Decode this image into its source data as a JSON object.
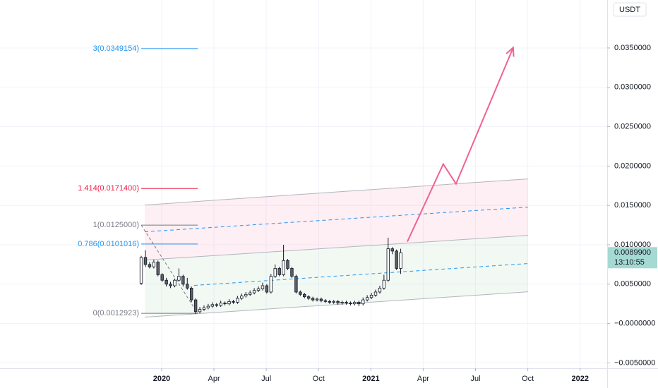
{
  "chart_data": {
    "type": "candlestick",
    "currency": "USDT",
    "x": [
      -1.17,
      -0.93,
      -0.69,
      -0.45,
      -0.21,
      0.03,
      0.27,
      0.51,
      0.75,
      0.99,
      1.23,
      1.47,
      1.71,
      1.95,
      2.19,
      2.43,
      2.67,
      2.91,
      3.15,
      3.39,
      3.63,
      3.87,
      4.11,
      4.35,
      4.59,
      4.83,
      5.07,
      5.31,
      5.55,
      5.79,
      6.03,
      6.27,
      6.51,
      6.75,
      6.99,
      7.23,
      7.47,
      7.71,
      7.95,
      8.19,
      8.43,
      8.67,
      8.91,
      9.15,
      9.39,
      9.63,
      9.87,
      10.11,
      10.35,
      10.59,
      10.83,
      11.07,
      11.31,
      11.55,
      11.79,
      12.03,
      12.27,
      12.51,
      12.75,
      12.99,
      13.23,
      13.47,
      13.71
    ],
    "open": [
      0.0051,
      0.0084,
      0.0075,
      0.0072,
      0.0078,
      0.0062,
      0.0055,
      0.005,
      0.0048,
      0.0055,
      0.006,
      0.005,
      0.0045,
      0.003,
      0.0015,
      0.0018,
      0.002,
      0.0022,
      0.0024,
      0.0023,
      0.0026,
      0.0025,
      0.0028,
      0.0027,
      0.0032,
      0.0035,
      0.0037,
      0.0039,
      0.0042,
      0.0044,
      0.0048,
      0.004,
      0.006,
      0.007,
      0.0062,
      0.008,
      0.007,
      0.006,
      0.004,
      0.0037,
      0.0034,
      0.0032,
      0.003,
      0.0031,
      0.0029,
      0.0028,
      0.0027,
      0.0028,
      0.0026,
      0.0027,
      0.0026,
      0.0025,
      0.0027,
      0.0025,
      0.003,
      0.0033,
      0.0036,
      0.004,
      0.0045,
      0.0055,
      0.0095,
      0.0092,
      0.007
    ],
    "high": [
      0.0086,
      0.0093,
      0.0078,
      0.0081,
      0.008,
      0.0064,
      0.0058,
      0.0053,
      0.0057,
      0.007,
      0.0062,
      0.0058,
      0.0047,
      0.0032,
      0.0021,
      0.0023,
      0.0025,
      0.0027,
      0.0026,
      0.0029,
      0.0028,
      0.0031,
      0.003,
      0.0035,
      0.0038,
      0.004,
      0.0042,
      0.0045,
      0.0047,
      0.0052,
      0.005,
      0.0063,
      0.0075,
      0.0072,
      0.01,
      0.0082,
      0.0072,
      0.0062,
      0.0042,
      0.0039,
      0.0036,
      0.0034,
      0.0033,
      0.0033,
      0.0031,
      0.003,
      0.003,
      0.003,
      0.0029,
      0.0029,
      0.0028,
      0.0029,
      0.0029,
      0.0033,
      0.0036,
      0.0039,
      0.0043,
      0.0048,
      0.0062,
      0.0109,
      0.0097,
      0.0094,
      0.0095
    ],
    "low": [
      0.0049,
      0.0072,
      0.007,
      0.007,
      0.006,
      0.0053,
      0.0047,
      0.0045,
      0.0046,
      0.0053,
      0.0047,
      0.0043,
      0.0027,
      0.0012,
      0.0013,
      0.0016,
      0.0018,
      0.002,
      0.0021,
      0.0021,
      0.0023,
      0.0023,
      0.0025,
      0.0025,
      0.003,
      0.0033,
      0.0035,
      0.0037,
      0.004,
      0.0042,
      0.0038,
      0.0038,
      0.0058,
      0.006,
      0.006,
      0.0068,
      0.0058,
      0.0038,
      0.0035,
      0.0032,
      0.003,
      0.0028,
      0.0028,
      0.0027,
      0.0026,
      0.0025,
      0.0025,
      0.0024,
      0.0024,
      0.0024,
      0.0023,
      0.0023,
      0.0022,
      0.0023,
      0.0028,
      0.0031,
      0.0034,
      0.0038,
      0.0043,
      0.0053,
      0.0088,
      0.0068,
      0.0063
    ],
    "close": [
      0.0084,
      0.0075,
      0.0072,
      0.0078,
      0.0062,
      0.0055,
      0.005,
      0.0048,
      0.0055,
      0.006,
      0.005,
      0.0045,
      0.003,
      0.0015,
      0.0018,
      0.002,
      0.0022,
      0.0024,
      0.0023,
      0.0026,
      0.0025,
      0.0028,
      0.0027,
      0.0032,
      0.0035,
      0.0037,
      0.0039,
      0.0042,
      0.0044,
      0.0048,
      0.004,
      0.006,
      0.007,
      0.0062,
      0.008,
      0.007,
      0.006,
      0.004,
      0.0037,
      0.0034,
      0.0032,
      0.003,
      0.0031,
      0.0029,
      0.0028,
      0.0027,
      0.0028,
      0.0026,
      0.0027,
      0.0026,
      0.0025,
      0.0027,
      0.0025,
      0.003,
      0.0033,
      0.0036,
      0.004,
      0.0045,
      0.0055,
      0.0095,
      0.0092,
      0.007,
      0.009
    ],
    "candle_colors": {
      "up": "#ffffff",
      "down": "#5d606b",
      "outline": "#131722"
    },
    "xlim": [
      -9.27,
      25.55
    ],
    "xticks": [
      {
        "value": 0,
        "label": "2020"
      },
      {
        "value": 3,
        "label": "Apr"
      },
      {
        "value": 6,
        "label": "Jul"
      },
      {
        "value": 9,
        "label": "Oct"
      },
      {
        "value": 12,
        "label": "2021"
      },
      {
        "value": 15,
        "label": "Apr"
      },
      {
        "value": 18,
        "label": "Jul"
      },
      {
        "value": 21,
        "label": "Oct"
      },
      {
        "value": 24,
        "label": "2022"
      }
    ],
    "ylim": [
      -0.00568,
      0.04109
    ],
    "yticks": [
      {
        "value": 0.035,
        "label": "0.0350000"
      },
      {
        "value": 0.03,
        "label": "0.0300000"
      },
      {
        "value": 0.025,
        "label": "0.0250000"
      },
      {
        "value": 0.02,
        "label": "0.0200000"
      },
      {
        "value": 0.015,
        "label": "0.0150000"
      },
      {
        "value": 0.01,
        "label": "0.0100000"
      },
      {
        "value": 0.005,
        "label": "0.0050000"
      },
      {
        "value": 0,
        "label": "−0.0000000"
      },
      {
        "value": -0.005,
        "label": "−0.0050000"
      }
    ],
    "grid": true,
    "last_price": {
      "value": 0.00899,
      "label": "0.0089900",
      "color": "#a5d9d3"
    },
    "countdown": "13:10:55",
    "fib_x": [
      -1.17,
      2.07
    ],
    "fib_levels": [
      {
        "value": 0.0349154,
        "label": "3(0.0349154)",
        "color": "#2196f3"
      },
      {
        "value": 0.01714,
        "label": "1.414(0.0171400)",
        "color": "#e91e43"
      },
      {
        "value": 0.0125,
        "label": "1(0.0125000)",
        "color": "#787b86"
      },
      {
        "value": 0.0101016,
        "label": "0.786(0.0101016)",
        "color": "#2196f3"
      },
      {
        "value": 0.0012923,
        "label": "0(0.0012923)",
        "color": "#787b86"
      }
    ],
    "channel": [
      {
        "x": [
          -0.97,
          21.01
        ],
        "values": [
          0.01505,
          0.01837
        ],
        "style": "solid",
        "color": "#b2b5be"
      },
      {
        "x": [
          -0.97,
          21.01
        ],
        "values": [
          0.01165,
          0.01478
        ],
        "style": "dashed",
        "color": "#2196f3"
      },
      {
        "x": [
          -0.97,
          21.01
        ],
        "values": [
          0.00806,
          0.0112
        ],
        "style": "solid",
        "color": "#b2b5be"
      },
      {
        "x": [
          1.86,
          21.01
        ],
        "values": [
          0.00484,
          0.00762
        ],
        "style": "dashed",
        "color": "#2196f3"
      },
      {
        "x": [
          -0.97,
          21.01
        ],
        "values": [
          0.00081,
          0.00403
        ],
        "style": "solid",
        "color": "#b2b5be"
      }
    ],
    "channel_fills": [
      {
        "between": [
          0,
          2
        ],
        "color": "rgba(242,54,120,0.08)"
      },
      {
        "between": [
          2,
          4
        ],
        "color": "rgba(76,175,80,0.07)"
      }
    ],
    "projection": {
      "x": [
        14.09,
        16.15,
        16.88,
        20.16
      ],
      "values": [
        0.0104,
        0.02025,
        0.01774,
        0.03504
      ],
      "color": "#f06292"
    }
  }
}
